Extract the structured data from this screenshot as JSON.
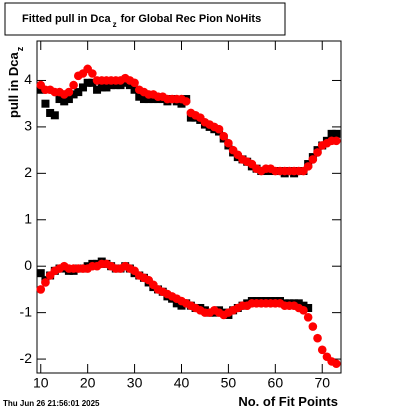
{
  "chart_data": {
    "type": "scatter",
    "title": "Fitted pull in Dca",
    "title_sub": "z",
    "title_rest": "for Global Rec Pion NoHits",
    "y_label": "pull in Dca",
    "y_label_sub": "z",
    "x_label": "No. of Fit Points",
    "footer": "Thu Jun 26 21:56:01 2025",
    "xlim": [
      9.2,
      74
    ],
    "ylim": [
      -2.3,
      4.85
    ],
    "xticks": [
      10,
      20,
      30,
      40,
      50,
      60,
      70
    ],
    "yticks": [
      -2,
      -1,
      0,
      1,
      2,
      3,
      4
    ],
    "x": [
      10,
      11,
      12,
      13,
      14,
      15,
      16,
      17,
      18,
      19,
      20,
      21,
      22,
      23,
      24,
      25,
      26,
      27,
      28,
      29,
      30,
      31,
      32,
      33,
      34,
      35,
      36,
      37,
      38,
      39,
      40,
      41,
      42,
      43,
      44,
      45,
      46,
      47,
      48,
      49,
      50,
      51,
      52,
      53,
      54,
      55,
      56,
      57,
      58,
      59,
      60,
      61,
      62,
      63,
      64,
      65,
      66,
      67,
      68,
      69,
      70,
      71,
      72,
      73
    ],
    "series": [
      {
        "color": "#000000",
        "marker": "square",
        "values": [
          3.8,
          3.5,
          3.3,
          3.25,
          3.6,
          3.55,
          3.6,
          3.7,
          3.75,
          3.85,
          3.95,
          3.95,
          3.8,
          3.85,
          3.85,
          3.9,
          3.9,
          3.9,
          3.95,
          3.9,
          3.8,
          3.65,
          3.6,
          3.6,
          3.6,
          3.6,
          3.6,
          3.55,
          3.6,
          3.55,
          3.5,
          3.6,
          3.2,
          3.2,
          3.15,
          3.05,
          3.0,
          2.95,
          2.9,
          2.75,
          2.6,
          2.45,
          2.35,
          2.3,
          2.25,
          2.15,
          2.1,
          2.05,
          2.05,
          2.05,
          2.05,
          2.05,
          2.0,
          2.05,
          2.0,
          2.05,
          2.05,
          2.2,
          2.35,
          2.5,
          2.6,
          2.7,
          2.85,
          2.85
        ]
      },
      {
        "color": "#ff0000",
        "marker": "circle",
        "values": [
          3.9,
          3.8,
          3.8,
          3.75,
          3.75,
          3.7,
          3.75,
          3.9,
          4.1,
          4.15,
          4.25,
          4.15,
          4.0,
          4.0,
          4.0,
          4.0,
          4.0,
          4.0,
          4.05,
          4.0,
          3.95,
          3.8,
          3.75,
          3.7,
          3.7,
          3.65,
          3.65,
          3.6,
          3.6,
          3.6,
          3.6,
          3.55,
          3.3,
          3.25,
          3.2,
          3.1,
          3.05,
          3.0,
          2.95,
          2.8,
          2.65,
          2.5,
          2.4,
          2.3,
          2.25,
          2.2,
          2.1,
          2.05,
          2.1,
          2.1,
          2.05,
          2.05,
          2.05,
          2.05,
          2.05,
          2.05,
          2.05,
          2.15,
          2.3,
          2.45,
          2.6,
          2.65,
          2.7,
          2.7
        ]
      },
      {
        "color": "#000000",
        "marker": "square",
        "values": [
          -0.15,
          -0.3,
          -0.2,
          -0.1,
          -0.05,
          -0.05,
          -0.1,
          -0.1,
          -0.05,
          -0.05,
          0.0,
          0.05,
          0.05,
          0.1,
          0.05,
          0.0,
          -0.05,
          -0.05,
          0.0,
          -0.05,
          -0.15,
          -0.2,
          -0.25,
          -0.35,
          -0.45,
          -0.5,
          -0.55,
          -0.65,
          -0.7,
          -0.8,
          -0.85,
          -0.8,
          -0.85,
          -0.9,
          -0.9,
          -0.95,
          -1.0,
          -1.0,
          -0.95,
          -1.0,
          -1.05,
          -0.95,
          -0.9,
          -0.85,
          -0.8,
          -0.75,
          -0.75,
          -0.75,
          -0.75,
          -0.75,
          -0.75,
          -0.75,
          -0.8,
          -0.8,
          -0.8,
          -0.8,
          -0.85,
          -0.9,
          null,
          null,
          null,
          null,
          null,
          null
        ]
      },
      {
        "color": "#ff0000",
        "marker": "circle",
        "values": [
          -0.5,
          -0.35,
          -0.2,
          -0.1,
          -0.05,
          0.0,
          -0.05,
          -0.05,
          -0.05,
          -0.05,
          -0.05,
          0.0,
          0.0,
          0.05,
          0.05,
          0.0,
          -0.05,
          -0.05,
          0.0,
          -0.05,
          -0.1,
          -0.2,
          -0.25,
          -0.3,
          -0.4,
          -0.5,
          -0.55,
          -0.6,
          -0.65,
          -0.7,
          -0.75,
          -0.8,
          -0.85,
          -0.9,
          -0.95,
          -1.0,
          -1.0,
          -0.95,
          -1.0,
          -1.05,
          -1.0,
          -0.95,
          -0.9,
          -0.85,
          -0.85,
          -0.8,
          -0.8,
          -0.8,
          -0.8,
          -0.8,
          -0.8,
          -0.8,
          -0.85,
          -0.85,
          -0.85,
          -0.9,
          -0.95,
          -1.1,
          -1.3,
          -1.55,
          -1.8,
          -1.95,
          -2.05,
          -2.1
        ]
      }
    ]
  }
}
